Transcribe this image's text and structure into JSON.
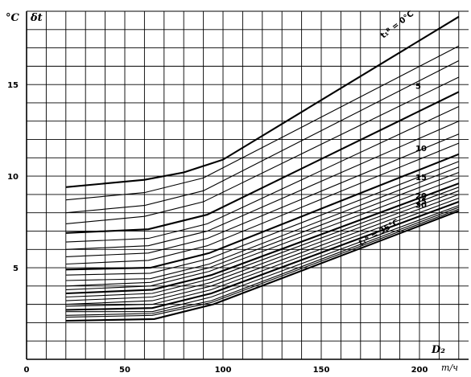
{
  "chart_data": {
    "type": "line",
    "title": "",
    "ylabel": "δt",
    "yunit": "°C",
    "xlabel": "D₂",
    "xunit": "m/ч",
    "xlim": [
      0,
      225
    ],
    "ylim": [
      0,
      19
    ],
    "grid": true,
    "x_ticks": [
      0,
      50,
      100,
      150,
      200
    ],
    "y_ticks": [
      5,
      10,
      15
    ],
    "x_tick_labels": [
      "0",
      "50",
      "100",
      "150",
      "200"
    ],
    "y_tick_labels": [
      "5",
      "10",
      "15"
    ],
    "curve_labels": {
      "top": "t₁ᴮ = 0°C",
      "bottom": "t₁ᴮ = 35°C",
      "side": [
        "5",
        "10",
        "15",
        "20",
        "25",
        "30"
      ]
    },
    "series": [
      {
        "name": "t₁ᴮ = 0°C",
        "heavy": true,
        "x": [
          20,
          60,
          80,
          100,
          220
        ],
        "y": [
          9.4,
          9.8,
          10.2,
          10.9,
          18.7
        ]
      },
      {
        "x": [
          20,
          60,
          90,
          220
        ],
        "y": [
          8.7,
          9.1,
          9.9,
          17.1
        ],
        "heavy": false
      },
      {
        "x": [
          20,
          60,
          90,
          220
        ],
        "y": [
          8.0,
          8.4,
          9.2,
          16.3
        ],
        "heavy": false
      },
      {
        "x": [
          20,
          60,
          90,
          220
        ],
        "y": [
          7.4,
          7.8,
          8.6,
          15.4
        ],
        "heavy": false
      },
      {
        "x": [
          20,
          62,
          92,
          220
        ],
        "y": [
          6.9,
          7.1,
          7.9,
          14.6
        ],
        "heavy": true
      },
      {
        "x": [
          20,
          62,
          92,
          220
        ],
        "y": [
          6.4,
          6.6,
          7.4,
          13.8
        ],
        "heavy": false
      },
      {
        "x": [
          20,
          62,
          92,
          220
        ],
        "y": [
          6.0,
          6.2,
          7.0,
          13.0
        ],
        "heavy": false
      },
      {
        "x": [
          20,
          62,
          92,
          220
        ],
        "y": [
          5.6,
          5.8,
          6.6,
          12.3
        ],
        "heavy": false
      },
      {
        "x": [
          20,
          62,
          92,
          220
        ],
        "y": [
          5.2,
          5.4,
          6.2,
          11.8
        ],
        "heavy": false
      },
      {
        "x": [
          20,
          63,
          93,
          220
        ],
        "y": [
          4.9,
          5.0,
          5.8,
          11.2
        ],
        "heavy": true
      },
      {
        "x": [
          20,
          63,
          93,
          220
        ],
        "y": [
          4.6,
          4.7,
          5.5,
          10.8
        ],
        "heavy": false
      },
      {
        "x": [
          20,
          63,
          93,
          220
        ],
        "y": [
          4.3,
          4.4,
          5.2,
          10.5
        ],
        "heavy": false
      },
      {
        "x": [
          20,
          63,
          93,
          220
        ],
        "y": [
          4.0,
          4.2,
          5.0,
          10.2
        ],
        "heavy": false
      },
      {
        "x": [
          20,
          63,
          93,
          220
        ],
        "y": [
          3.8,
          4.0,
          4.8,
          9.9
        ],
        "heavy": false
      },
      {
        "x": [
          20,
          64,
          94,
          220
        ],
        "y": [
          3.6,
          3.8,
          4.6,
          9.6
        ],
        "heavy": true
      },
      {
        "x": [
          20,
          64,
          94,
          220
        ],
        "y": [
          3.4,
          3.6,
          4.4,
          9.4
        ],
        "heavy": false
      },
      {
        "x": [
          20,
          64,
          94,
          220
        ],
        "y": [
          3.2,
          3.4,
          4.2,
          9.2
        ],
        "heavy": false
      },
      {
        "x": [
          20,
          64,
          94,
          220
        ],
        "y": [
          3.0,
          3.2,
          4.0,
          9.0
        ],
        "heavy": false
      },
      {
        "x": [
          20,
          64,
          94,
          220
        ],
        "y": [
          2.9,
          3.0,
          3.8,
          8.8
        ],
        "heavy": false
      },
      {
        "x": [
          20,
          64,
          94,
          220
        ],
        "y": [
          2.7,
          2.8,
          3.6,
          8.6
        ],
        "heavy": true
      },
      {
        "x": [
          20,
          64,
          94,
          220
        ],
        "y": [
          2.6,
          2.6,
          3.4,
          8.4
        ],
        "heavy": false
      },
      {
        "x": [
          20,
          64,
          94,
          220
        ],
        "y": [
          2.4,
          2.5,
          3.2,
          8.3
        ],
        "heavy": false
      },
      {
        "x": [
          20,
          64,
          94,
          220
        ],
        "y": [
          2.3,
          2.4,
          3.1,
          8.2
        ],
        "heavy": false
      },
      {
        "name": "t₁ᴮ = 35°C",
        "heavy": true,
        "x": [
          20,
          65,
          95,
          220
        ],
        "y": [
          2.1,
          2.2,
          3.0,
          8.1
        ]
      }
    ]
  }
}
